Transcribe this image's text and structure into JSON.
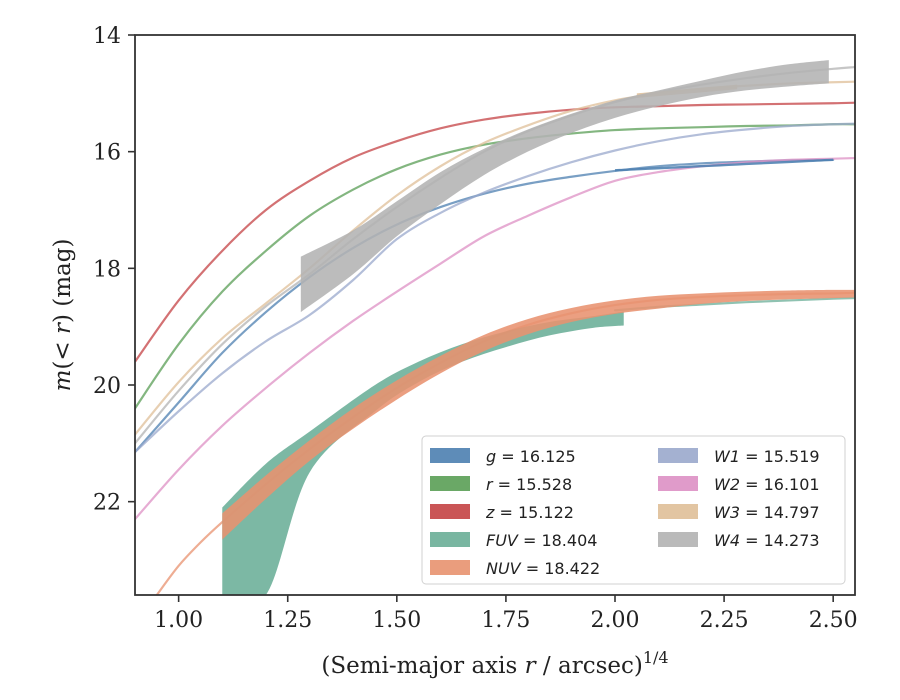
{
  "chart_data": {
    "type": "line",
    "xlabel": "(Semi-major axis r / arcsec)",
    "xlabel_prefix": "(Semi-major axis ",
    "xlabel_r": "r",
    "xlabel_suffix": " / arcsec)",
    "xlabel_exponent": "1/4",
    "ylabel": "m(< r) (mag)",
    "ylabel_prefix": "m",
    "ylabel_mid": "(< ",
    "ylabel_r": "r",
    "ylabel_suffix": ") (mag)",
    "xlim": [
      0.9,
      2.55
    ],
    "ylim": [
      23.6,
      14.0
    ],
    "y_inverted": true,
    "x_ticks": [
      1.0,
      1.25,
      1.5,
      1.75,
      2.0,
      2.25,
      2.5
    ],
    "x_tick_labels": [
      "1.00",
      "1.25",
      "1.50",
      "1.75",
      "2.00",
      "2.25",
      "2.50"
    ],
    "y_ticks": [
      14,
      16,
      18,
      20,
      22
    ],
    "y_tick_labels": [
      "14",
      "16",
      "18",
      "20",
      "22"
    ],
    "grid": false,
    "legend_position": "bottom-right",
    "series": [
      {
        "name": "g",
        "label_value": "= 16.125",
        "color": "#4c7fb0",
        "x": [
          0.9,
          1.0,
          1.1,
          1.2,
          1.3,
          1.4,
          1.5,
          1.6,
          1.7,
          1.8,
          1.9,
          2.0,
          2.1,
          2.2,
          2.3,
          2.4,
          2.5
        ],
        "y": [
          21.15,
          20.3,
          19.45,
          18.75,
          18.15,
          17.65,
          17.25,
          16.95,
          16.72,
          16.55,
          16.43,
          16.33,
          16.25,
          16.2,
          16.17,
          16.15,
          16.14
        ],
        "band_x": [
          2.0,
          2.5
        ],
        "band_lo": [
          16.3,
          16.12
        ],
        "band_hi": [
          16.34,
          16.16
        ]
      },
      {
        "name": "r",
        "label_value": "= 15.528",
        "color": "#5a9e55",
        "x": [
          0.9,
          1.0,
          1.1,
          1.2,
          1.3,
          1.4,
          1.5,
          1.6,
          1.7,
          1.8,
          1.9,
          2.0,
          2.1,
          2.2,
          2.3,
          2.4,
          2.5,
          2.55
        ],
        "y": [
          20.4,
          19.3,
          18.4,
          17.7,
          17.1,
          16.65,
          16.3,
          16.05,
          15.88,
          15.77,
          15.69,
          15.63,
          15.6,
          15.58,
          15.56,
          15.55,
          15.53,
          15.53
        ]
      },
      {
        "name": "z",
        "label_value": "= 15.122",
        "color": "#c44244",
        "x": [
          0.9,
          1.0,
          1.1,
          1.2,
          1.3,
          1.4,
          1.5,
          1.6,
          1.7,
          1.8,
          1.9,
          2.0,
          2.1,
          2.2,
          2.3,
          2.4,
          2.5,
          2.55
        ],
        "y": [
          19.6,
          18.55,
          17.7,
          17.0,
          16.5,
          16.1,
          15.82,
          15.6,
          15.45,
          15.35,
          15.28,
          15.24,
          15.22,
          15.2,
          15.19,
          15.18,
          15.17,
          15.16
        ]
      },
      {
        "name": "FUV",
        "label_value": "= 18.404",
        "color": "#6aae97",
        "x": [
          2.0,
          2.1,
          2.2,
          2.3,
          2.4,
          2.5,
          2.55
        ],
        "y": [
          18.72,
          18.66,
          18.62,
          18.58,
          18.55,
          18.52,
          18.51
        ],
        "band_x": [
          1.1,
          1.2,
          1.3,
          1.45,
          1.55,
          1.65,
          1.75,
          1.85,
          1.95,
          2.02
        ],
        "band_lo": [
          22.1,
          21.35,
          20.8,
          20.0,
          19.6,
          19.3,
          19.08,
          18.92,
          18.82,
          18.74
        ],
        "band_hi": [
          23.6,
          23.6,
          21.5,
          20.45,
          19.95,
          19.6,
          19.35,
          19.15,
          19.02,
          18.98
        ]
      },
      {
        "name": "NUV",
        "label_value": "= 18.422",
        "color": "#e8926f",
        "x": [
          0.95,
          1.0,
          1.05,
          1.1,
          1.2,
          1.3,
          1.4,
          1.5,
          1.6,
          1.7,
          1.8,
          1.9,
          2.0,
          2.1,
          2.2,
          2.3,
          2.4,
          2.5,
          2.55
        ],
        "y": [
          23.6,
          23.1,
          22.7,
          22.35,
          21.7,
          21.1,
          20.55,
          20.05,
          19.62,
          19.25,
          18.97,
          18.77,
          18.63,
          18.54,
          18.49,
          18.46,
          18.44,
          18.43,
          18.42
        ],
        "band_x": [
          1.1,
          1.2,
          1.3,
          1.4,
          1.5,
          1.6,
          1.7,
          1.8,
          1.9,
          2.0,
          2.1,
          2.2,
          2.3,
          2.4,
          2.5,
          2.55
        ],
        "band_lo": [
          22.2,
          21.55,
          20.95,
          20.4,
          19.92,
          19.5,
          19.14,
          18.87,
          18.68,
          18.55,
          18.47,
          18.43,
          18.4,
          18.38,
          18.37,
          18.37
        ],
        "band_hi": [
          22.65,
          21.95,
          21.3,
          20.75,
          20.25,
          19.8,
          19.42,
          19.13,
          18.92,
          18.78,
          18.69,
          18.61,
          18.56,
          18.53,
          18.51,
          18.5
        ]
      },
      {
        "name": "W1",
        "label_value": "= 15.519",
        "color": "#9aa8cc",
        "x": [
          0.9,
          1.0,
          1.1,
          1.2,
          1.3,
          1.4,
          1.5,
          1.6,
          1.7,
          1.8,
          1.9,
          2.0,
          2.1,
          2.2,
          2.3,
          2.4,
          2.5,
          2.55
        ],
        "y": [
          21.15,
          20.45,
          19.8,
          19.25,
          18.8,
          18.2,
          17.5,
          17.05,
          16.7,
          16.42,
          16.18,
          15.98,
          15.82,
          15.7,
          15.62,
          15.56,
          15.53,
          15.52
        ]
      },
      {
        "name": "W2",
        "label_value": "= 16.101",
        "color": "#dd90c4",
        "x": [
          0.9,
          1.0,
          1.1,
          1.2,
          1.3,
          1.4,
          1.5,
          1.6,
          1.7,
          1.8,
          1.9,
          2.0,
          2.1,
          2.2,
          2.3,
          2.4,
          2.5,
          2.55
        ],
        "y": [
          22.3,
          21.45,
          20.7,
          20.05,
          19.45,
          18.9,
          18.4,
          17.92,
          17.45,
          17.1,
          16.78,
          16.5,
          16.35,
          16.25,
          16.18,
          16.14,
          16.12,
          16.11
        ]
      },
      {
        "name": "W3",
        "label_value": "= 14.797",
        "color": "#dfbf98",
        "x": [
          0.9,
          1.0,
          1.1,
          1.2,
          1.3,
          1.4,
          1.5,
          1.6,
          1.7,
          1.8,
          1.9,
          2.0,
          2.1,
          2.2,
          2.3,
          2.4,
          2.5,
          2.55
        ],
        "y": [
          20.85,
          19.95,
          19.2,
          18.6,
          18.0,
          17.35,
          16.75,
          16.25,
          15.85,
          15.55,
          15.3,
          15.12,
          15.0,
          14.92,
          14.87,
          14.83,
          14.81,
          14.8
        ],
        "band_x": [
          2.05,
          2.28
        ],
        "band_lo": [
          15.0,
          14.85
        ],
        "band_hi": [
          15.08,
          14.93
        ]
      },
      {
        "name": "W4",
        "label_value": "= 14.273",
        "color": "#b3b3b3",
        "x": [
          0.9,
          1.0,
          1.1,
          1.2,
          1.3,
          1.4,
          1.5,
          1.6,
          1.7,
          1.8,
          1.9,
          2.0,
          2.1,
          2.2,
          2.3,
          2.4,
          2.5,
          2.55
        ],
        "y": [
          21.0,
          20.1,
          19.3,
          18.65,
          18.1,
          17.5,
          16.95,
          16.45,
          16.0,
          15.65,
          15.38,
          15.15,
          14.98,
          14.85,
          14.74,
          14.65,
          14.58,
          14.55
        ],
        "band_x": [
          1.28,
          1.4,
          1.5,
          1.6,
          1.7,
          1.8,
          1.9,
          2.0,
          2.1,
          2.2,
          2.3,
          2.4,
          2.49
        ],
        "band_lo": [
          17.8,
          17.35,
          16.85,
          16.35,
          15.95,
          15.62,
          15.35,
          15.12,
          14.95,
          14.78,
          14.62,
          14.5,
          14.43
        ],
        "band_hi": [
          18.75,
          18.1,
          17.45,
          16.9,
          16.4,
          16.0,
          15.68,
          15.42,
          15.22,
          15.06,
          14.95,
          14.88,
          14.83
        ]
      }
    ]
  }
}
